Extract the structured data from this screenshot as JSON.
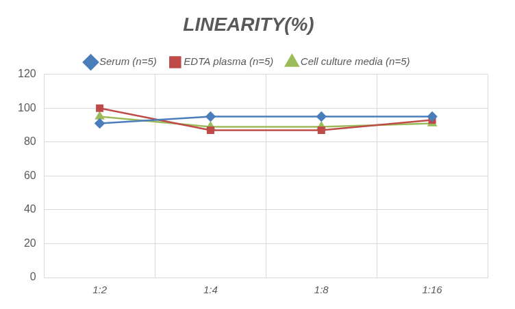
{
  "chart_data": {
    "type": "line",
    "title": "LINEARITY(%)",
    "categories": [
      "1:2",
      "1:4",
      "1:8",
      "1:16"
    ],
    "series": [
      {
        "name": "Serum (n=5)",
        "color": "#4a7ebb",
        "marker": "diamond",
        "values": [
          91,
          95,
          95,
          95
        ]
      },
      {
        "name": "EDTA plasma (n=5)",
        "color": "#be4b48",
        "marker": "square",
        "values": [
          100,
          87,
          87,
          93
        ]
      },
      {
        "name": "Cell culture media (n=5)",
        "color": "#9bbb59",
        "marker": "triangle",
        "values": [
          95,
          89,
          89,
          91
        ]
      }
    ],
    "ylim": [
      0,
      120
    ],
    "yticks": [
      0,
      20,
      40,
      60,
      80,
      100,
      120
    ],
    "grid": true,
    "legend": "top"
  }
}
